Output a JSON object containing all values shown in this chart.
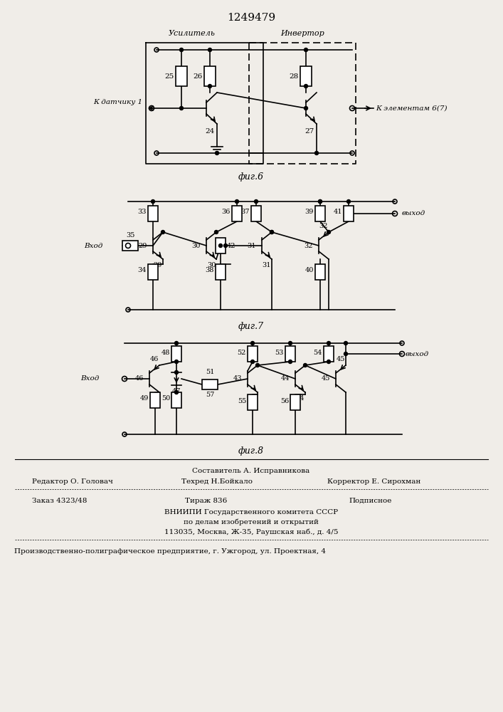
{
  "title": "1249479",
  "bg_color": "#f0ede8",
  "fig6_label": "фиг.6",
  "fig7_label": "фиг.7",
  "fig8_label": "фиг.8",
  "footer_line1": "Составитель А. Исправникова",
  "footer_line2_left": "Редактор О. Головач",
  "footer_line2_mid": "Техред Н.Бойкало",
  "footer_line2_right": "Корректор Е. Сирохман",
  "footer_line3_left": "Заказ 4323/48",
  "footer_line3_mid": "Тираж 836",
  "footer_line3_right": "Подписное",
  "footer_line4": "ВНИИПИ Государственного комитета СССР",
  "footer_line5": "по делам изобретений и открытий",
  "footer_line6": "113035, Москва, Ж-35, Раушская наб., д. 4/5",
  "footer_line7": "Производственно-полиграфическое предприятие, г. Ужгород, ул. Проектная, 4"
}
